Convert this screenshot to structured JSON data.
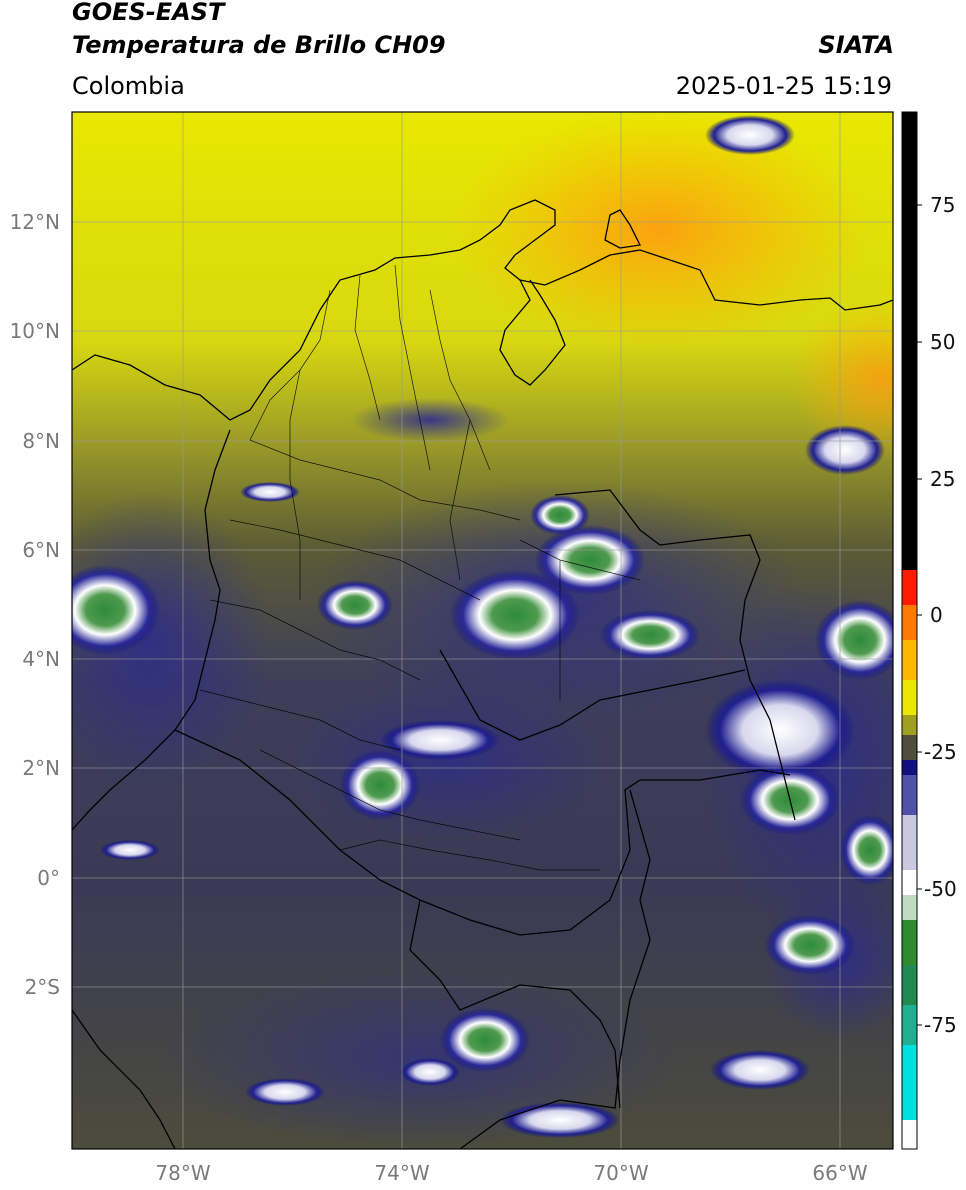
{
  "header": {
    "satellite": "GOES-EAST",
    "product": "Temperatura de Brillo CH09",
    "region": "Colombia",
    "organization": "SIATA",
    "datetime": "2025-01-25 15:19"
  },
  "map": {
    "lon_range": [
      -80,
      -65
    ],
    "lat_range": [
      -5.0,
      14.0
    ],
    "lat_ticks": [
      "12°N",
      "10°N",
      "8°N",
      "6°N",
      "4°N",
      "2°N",
      "0°",
      "2°S"
    ],
    "lon_ticks": [
      "78°W",
      "74°W",
      "70°W",
      "66°W"
    ],
    "grid": true
  },
  "colorbar": {
    "ticks": [
      "75",
      "50",
      "25",
      "0",
      "-25",
      "-50",
      "-75"
    ],
    "colors": {
      "black": "#000000",
      "red": "#ff1a00",
      "orange": "#ff9900",
      "yellow": "#f2f200",
      "olive": "#4d4d2a",
      "navy": "#101080",
      "white": "#ffffff",
      "green": "#2e8b2e",
      "teal": "#20b090",
      "cyan": "#00e0e0"
    }
  }
}
